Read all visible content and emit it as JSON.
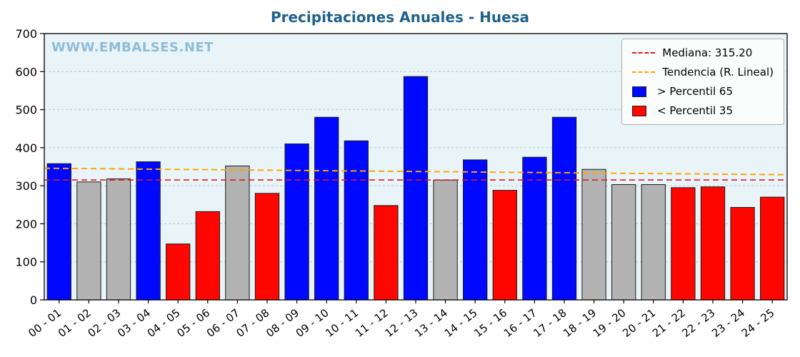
{
  "title": "Precipitaciones Anuales - Huesa",
  "watermark": "WWW.EMBALSES.NET",
  "colors": {
    "title": "#1f618d",
    "watermark": "#8fbcd8"
  },
  "chart_data": {
    "type": "bar",
    "title": "Precipitaciones Anuales - Huesa",
    "xlabel": "",
    "ylabel": "",
    "ylim": [
      0,
      700
    ],
    "yticks": [
      0,
      100,
      200,
      300,
      400,
      500,
      600,
      700
    ],
    "grid": true,
    "legend_position": "upper right",
    "categories": [
      "00 - 01",
      "01 - 02",
      "02 - 03",
      "03 - 04",
      "04 - 05",
      "05 - 06",
      "06 - 07",
      "07 - 08",
      "08 - 09",
      "09 - 10",
      "10 - 11",
      "11 - 12",
      "12 - 13",
      "13 - 14",
      "14 - 15",
      "15 - 16",
      "16 - 17",
      "17 - 18",
      "18 - 19",
      "19 - 20",
      "20 - 21",
      "21 - 22",
      "22 - 23",
      "23 - 24",
      "24 - 25"
    ],
    "values": [
      358,
      310,
      318,
      363,
      147,
      232,
      352,
      280,
      410,
      480,
      418,
      248,
      587,
      315,
      368,
      288,
      375,
      480,
      343,
      303,
      303,
      295,
      297,
      243,
      270
    ],
    "bar_classes": [
      "above",
      "mid",
      "mid",
      "above",
      "below",
      "below",
      "mid",
      "below",
      "above",
      "above",
      "above",
      "below",
      "above",
      "mid",
      "above",
      "below",
      "above",
      "above",
      "mid",
      "mid",
      "mid",
      "below",
      "below",
      "below",
      "below"
    ],
    "median": 315.2,
    "trend": {
      "start": 346,
      "end": 329
    },
    "colors": {
      "above": "#0008ff",
      "below": "#ff0600",
      "mid": "#b3b3b3",
      "median": "#e01b1b",
      "trend": "#ffa600",
      "plot_bg": "#e8f4f8",
      "grid": "#b9c8d2"
    },
    "legend": [
      {
        "label": "Mediana: 315.20",
        "type": "dash",
        "color": "#e01b1b",
        "icon": "median-dash-icon"
      },
      {
        "label": "Tendencia (R. Lineal)",
        "type": "dash",
        "color": "#ffa600",
        "icon": "trend-dash-icon"
      },
      {
        "label": " > Percentil 65",
        "type": "square",
        "color": "#0008ff",
        "icon": "percentil65-swatch-icon"
      },
      {
        "label": " < Percentil 35",
        "type": "square",
        "color": "#ff0600",
        "icon": "percentil35-swatch-icon"
      }
    ]
  }
}
